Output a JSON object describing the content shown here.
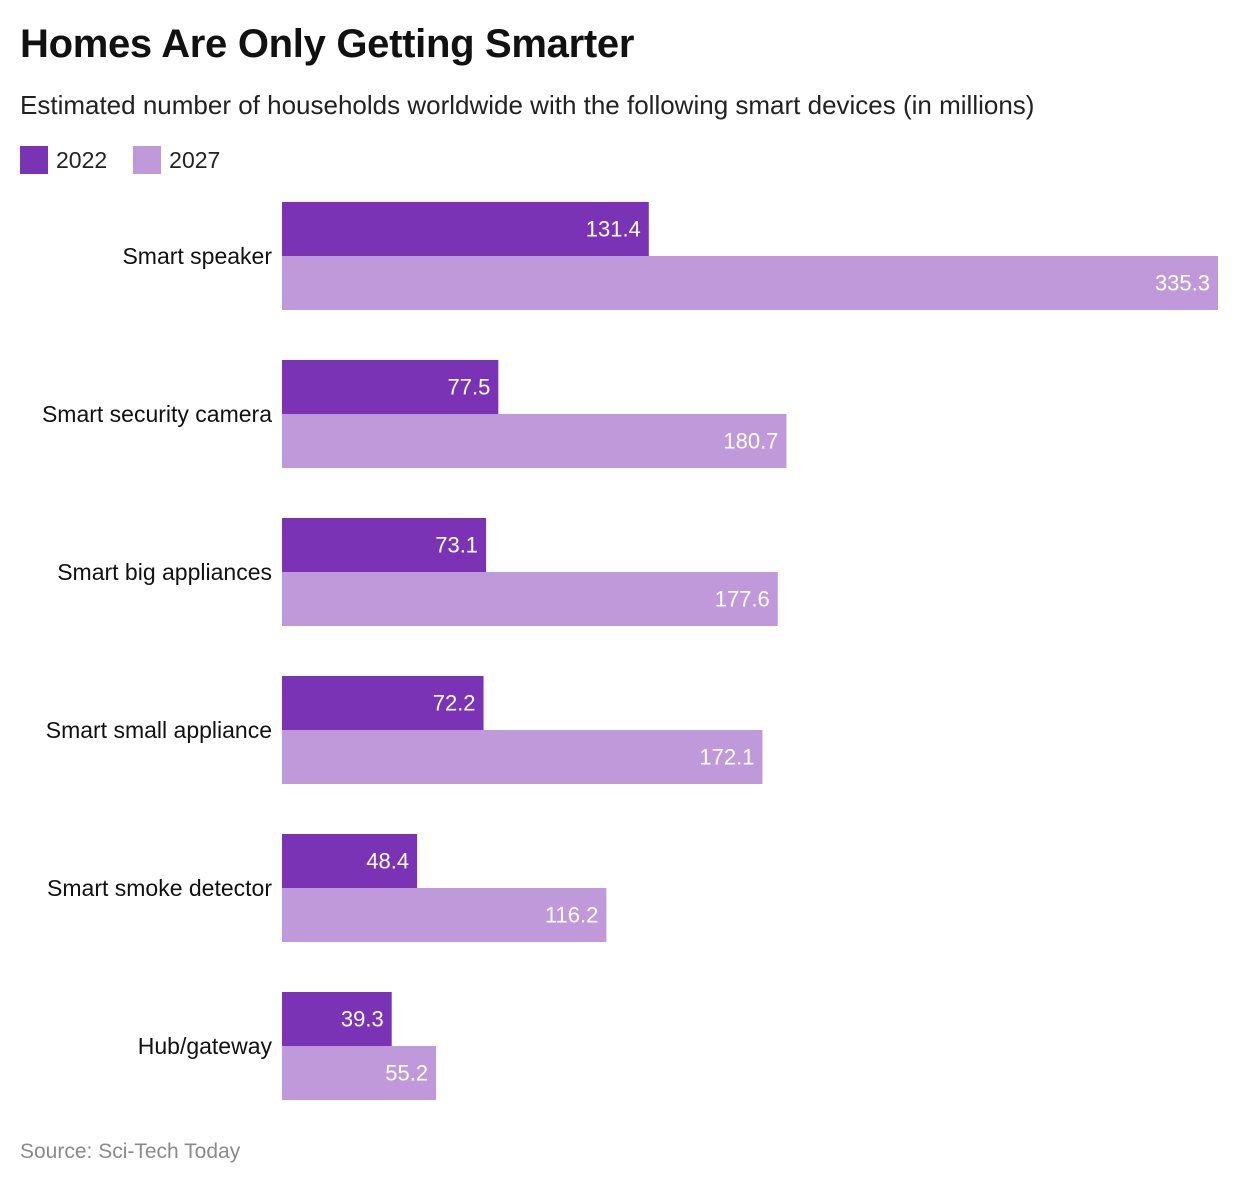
{
  "chart_data": {
    "type": "bar",
    "orientation": "horizontal",
    "title": "Homes Are Only Getting Smarter",
    "subtitle": "Estimated number of households worldwide with the following smart devices (in millions)",
    "categories": [
      "Smart speaker",
      "Smart security camera",
      "Smart big appliances",
      "Smart small appliance",
      "Smart smoke detector",
      "Hub/gateway"
    ],
    "series": [
      {
        "name": "2022",
        "color": "#7b33b5",
        "values": [
          131.4,
          77.5,
          73.1,
          72.2,
          48.4,
          39.3
        ]
      },
      {
        "name": "2027",
        "color": "#bf99d9",
        "values": [
          335.3,
          180.7,
          177.6,
          172.1,
          116.2,
          55.2
        ]
      }
    ],
    "xlim": [
      0,
      335.3
    ],
    "grid": false,
    "legend_position": "top-left",
    "source": "Source: Sci-Tech Today"
  }
}
